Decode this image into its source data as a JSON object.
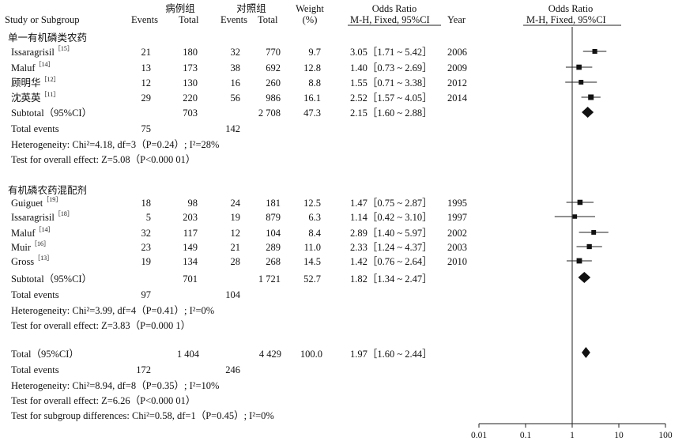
{
  "header": {
    "study": "Study or Subgroup",
    "case_group": "病例组",
    "control_group": "对照组",
    "events": "Events",
    "total": "Total",
    "weight": "Weight",
    "weight_unit": "(%)",
    "or_title": "Odds Ratio",
    "or_method": "M-H, Fixed, 95%CI",
    "year": "Year",
    "plot_title": "Odds Ratio",
    "plot_method": "M-H, Fixed, 95%CI"
  },
  "groups": [
    {
      "name": "单一有机磷类农药",
      "subtotal_label": "Subtotal（95%CI）",
      "subtotal_case_total": "703",
      "subtotal_ctrl_total": "2 708",
      "subtotal_weight": "47.3",
      "subtotal_ci": "2.15［1.60 ~ 2.88］",
      "total_events_label": "Total events",
      "total_events_case": "75",
      "total_events_ctrl": "142",
      "heterogeneity": "Heterogeneity: Chi²=4.18, df=3（P=0.24）; I²=28%",
      "overall_effect": "Test for overall effect: Z=5.08（P<0.000 01）"
    },
    {
      "name": "有机磷农药混配剂",
      "subtotal_label": "Subtotal（95%CI）",
      "subtotal_case_total": "701",
      "subtotal_ctrl_total": "1 721",
      "subtotal_weight": "52.7",
      "subtotal_ci": "1.82［1.34 ~ 2.47］",
      "total_events_label": "Total events",
      "total_events_case": "97",
      "total_events_ctrl": "104",
      "heterogeneity": "Heterogeneity: Chi²=3.99, df=4（P=0.41）; I²=0%",
      "overall_effect": "Test for overall effect: Z=3.83（P=0.000 1）"
    }
  ],
  "studies": [
    {
      "name": "Issaragrisil",
      "ref": "［15］",
      "case_events": "21",
      "case_total": "180",
      "ctrl_events": "32",
      "ctrl_total": "770",
      "weight": "9.7",
      "ci": "3.05［1.71 ~ 5.42］",
      "year": "2006"
    },
    {
      "name": "Maluf",
      "ref": "［14］",
      "case_events": "13",
      "case_total": "173",
      "ctrl_events": "38",
      "ctrl_total": "692",
      "weight": "12.8",
      "ci": "1.40［0.73 ~ 2.69］",
      "year": "2009"
    },
    {
      "name": "顾明华",
      "ref": "［12］",
      "case_events": "12",
      "case_total": "130",
      "ctrl_events": "16",
      "ctrl_total": "260",
      "weight": "8.8",
      "ci": "1.55［0.71 ~ 3.38］",
      "year": "2012"
    },
    {
      "name": "沈英英",
      "ref": "［11］",
      "case_events": "29",
      "case_total": "220",
      "ctrl_events": "56",
      "ctrl_total": "986",
      "weight": "16.1",
      "ci": "2.52［1.57 ~ 4.05］",
      "year": "2014"
    },
    {
      "name": "Guiguet",
      "ref": "［19］",
      "case_events": "18",
      "case_total": "98",
      "ctrl_events": "24",
      "ctrl_total": "181",
      "weight": "12.5",
      "ci": "1.47［0.75 ~ 2.87］",
      "year": "1995"
    },
    {
      "name": "Issaragrisil",
      "ref": "［18］",
      "case_events": "5",
      "case_total": "203",
      "ctrl_events": "19",
      "ctrl_total": "879",
      "weight": "6.3",
      "ci": "1.14［0.42 ~ 3.10］",
      "year": "1997"
    },
    {
      "name": "Maluf",
      "ref": "［14］",
      "case_events": "32",
      "case_total": "117",
      "ctrl_events": "12",
      "ctrl_total": "104",
      "weight": "8.4",
      "ci": "2.89［1.40 ~ 5.97］",
      "year": "2002"
    },
    {
      "name": "Muir",
      "ref": "［16］",
      "case_events": "23",
      "case_total": "149",
      "ctrl_events": "21",
      "ctrl_total": "289",
      "weight": "11.0",
      "ci": "2.33［1.24 ~ 4.37］",
      "year": "2003"
    },
    {
      "name": "Gross",
      "ref": "［13］",
      "case_events": "19",
      "case_total": "134",
      "ctrl_events": "28",
      "ctrl_total": "268",
      "weight": "14.5",
      "ci": "1.42［0.76 ~ 2.64］",
      "year": "2010"
    }
  ],
  "overall": {
    "label": "Total（95%CI）",
    "case_total": "1 404",
    "ctrl_total": "4 429",
    "weight": "100.0",
    "ci": "1.97［1.60 ~ 2.44］",
    "total_events_label": "Total events",
    "total_events_case": "172",
    "total_events_ctrl": "246",
    "heterogeneity": "Heterogeneity: Chi²=8.94, df=8（P=0.35）; I²=10%",
    "overall_effect": "Test for overall effect: Z=6.26（P<0.000 01）",
    "subgroup_diff": "Test for subgroup differences: Chi²=0.58, df=1（P=0.45）; I²=0%"
  },
  "chart_data": {
    "type": "scatter",
    "plot": "forest",
    "x_scale": "log",
    "xlim": [
      0.01,
      100
    ],
    "x_ticks": [
      "0.01",
      "0.1",
      "1",
      "10",
      "100"
    ],
    "reference_line": 1,
    "studies": [
      {
        "label": "Issaragrisil 2006",
        "or": 3.05,
        "lo": 1.71,
        "hi": 5.42,
        "weight": 9.7
      },
      {
        "label": "Maluf 2009",
        "or": 1.4,
        "lo": 0.73,
        "hi": 2.69,
        "weight": 12.8
      },
      {
        "label": "顾明华 2012",
        "or": 1.55,
        "lo": 0.71,
        "hi": 3.38,
        "weight": 8.8
      },
      {
        "label": "沈英英 2014",
        "or": 2.52,
        "lo": 1.57,
        "hi": 4.05,
        "weight": 16.1
      },
      {
        "label": "Guiguet 1995",
        "or": 1.47,
        "lo": 0.75,
        "hi": 2.87,
        "weight": 12.5
      },
      {
        "label": "Issaragrisil 1997",
        "or": 1.14,
        "lo": 0.42,
        "hi": 3.1,
        "weight": 6.3
      },
      {
        "label": "Maluf 2002",
        "or": 2.89,
        "lo": 1.4,
        "hi": 5.97,
        "weight": 8.4
      },
      {
        "label": "Muir 2003",
        "or": 2.33,
        "lo": 1.24,
        "hi": 4.37,
        "weight": 11.0
      },
      {
        "label": "Gross 2010",
        "or": 1.42,
        "lo": 0.76,
        "hi": 2.64,
        "weight": 14.5
      }
    ],
    "pooled": [
      {
        "label": "Subtotal 单一有机磷类农药",
        "or": 2.15,
        "lo": 1.6,
        "hi": 2.88
      },
      {
        "label": "Subtotal 有机磷农药混配剂",
        "or": 1.82,
        "lo": 1.34,
        "hi": 2.47
      },
      {
        "label": "Total",
        "or": 1.97,
        "lo": 1.6,
        "hi": 2.44
      }
    ]
  }
}
